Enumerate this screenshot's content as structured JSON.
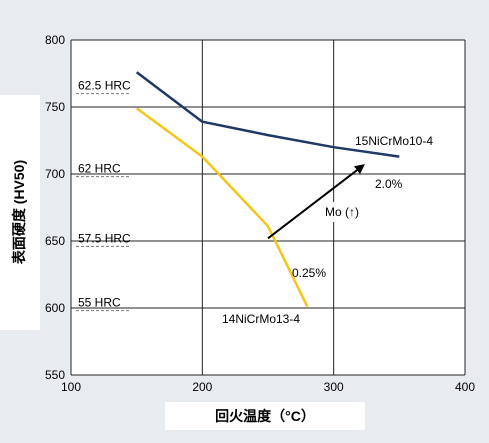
{
  "chart_data": {
    "type": "line",
    "title": "",
    "xlabel": "回火温度（°C）",
    "ylabel": "表面硬度 (HV50)",
    "xlim": [
      100,
      400
    ],
    "ylim": [
      550,
      800
    ],
    "x_ticks": [
      100,
      200,
      300,
      400
    ],
    "y_ticks": [
      550,
      600,
      650,
      700,
      750,
      800
    ],
    "grid": true,
    "series": [
      {
        "name": "15NiCrMo10-4",
        "color": "#1f3864",
        "points": [
          [
            150,
            776
          ],
          [
            200,
            739
          ],
          [
            250,
            729
          ],
          [
            300,
            720
          ],
          [
            350,
            713
          ]
        ]
      },
      {
        "name": "14NiCrMo13-4",
        "color": "#f5c518",
        "points": [
          [
            150,
            749
          ],
          [
            200,
            713
          ],
          [
            250,
            661
          ],
          [
            280,
            601
          ]
        ]
      }
    ],
    "hrc_lines": [
      {
        "label": "62.5 HRC",
        "value": 760
      },
      {
        "label": "62 HRC",
        "value": 698
      },
      {
        "label": "57.5 HRC",
        "value": 646
      },
      {
        "label": "55 HRC",
        "value": 598
      }
    ],
    "annotations": {
      "arrow_label": "Mo (↑)",
      "arrow_start_label": "0.25%",
      "arrow_end_label": "2.0%",
      "arrow_from": [
        250,
        652
      ],
      "arrow_to": [
        322,
        706
      ]
    },
    "colors": {
      "grid": "#222222",
      "hrc_dash": "#777777",
      "axis_text": "#000000",
      "background": "#e8ecf0"
    }
  }
}
